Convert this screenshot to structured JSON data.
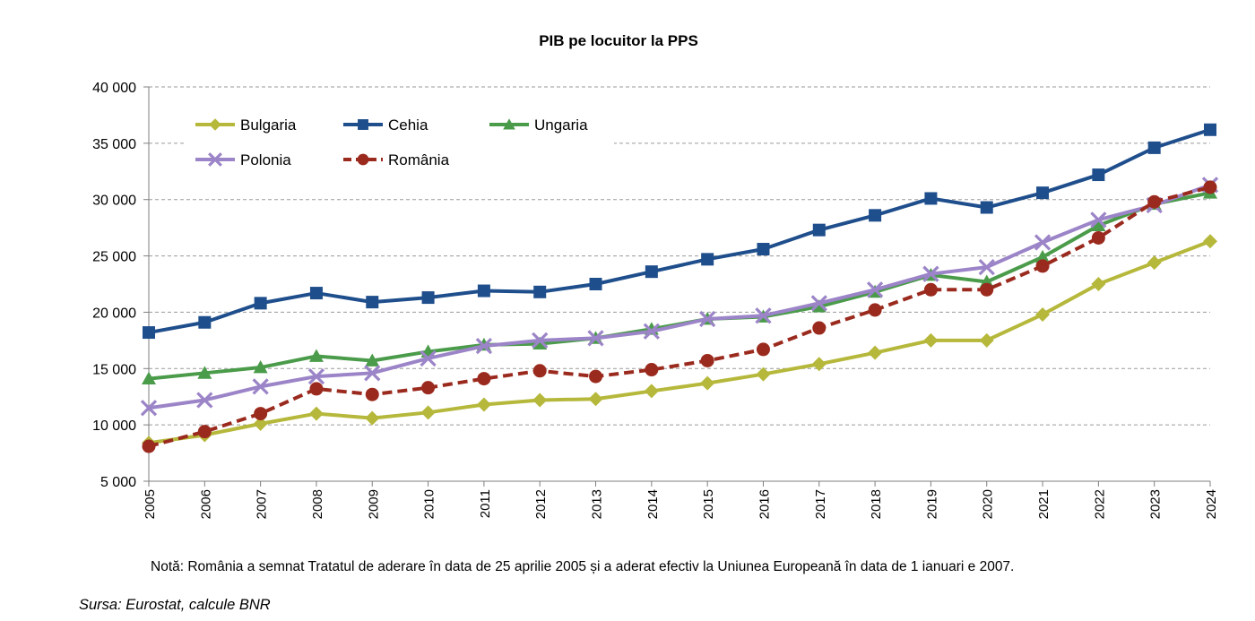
{
  "chart_data": {
    "type": "line",
    "title": "PIB pe locuitor  la PPS",
    "xlabel": "",
    "ylabel": "",
    "ylim": [
      5000,
      40000
    ],
    "yticks": [
      5000,
      10000,
      15000,
      20000,
      25000,
      30000,
      35000,
      40000
    ],
    "ytick_labels": [
      "5 000",
      "10 000",
      "15 000",
      "20 000",
      "25 000",
      "30 000",
      "35 000",
      "40 000"
    ],
    "grid": "horizontal dashed",
    "legend_position": "top-left",
    "x": [
      "2005",
      "2006",
      "2007",
      "2008",
      "2009",
      "2010",
      "2011",
      "2012",
      "2013",
      "2014",
      "2015",
      "2016",
      "2017",
      "2018",
      "2019",
      "2020",
      "2021",
      "2022",
      "2023",
      "2024"
    ],
    "series": [
      {
        "name": "Bulgaria",
        "color": "#b5b83a",
        "marker": "diamond",
        "dash": false,
        "values": [
          8400,
          9100,
          10100,
          11000,
          10600,
          11100,
          11800,
          12200,
          12300,
          13000,
          13700,
          14500,
          15400,
          16400,
          17500,
          17500,
          19800,
          22500,
          24400,
          26300
        ]
      },
      {
        "name": "Cehia",
        "color": "#1f4e8c",
        "marker": "square",
        "dash": false,
        "values": [
          18200,
          19100,
          20800,
          21700,
          20900,
          21300,
          21900,
          21800,
          22500,
          23600,
          24700,
          25600,
          27300,
          28600,
          30100,
          29300,
          30600,
          32200,
          34600,
          36200
        ]
      },
      {
        "name": "Ungaria",
        "color": "#4a9b4a",
        "marker": "triangle",
        "dash": false,
        "values": [
          14100,
          14600,
          15100,
          16100,
          15700,
          16500,
          17100,
          17200,
          17700,
          18500,
          19400,
          19600,
          20500,
          21800,
          23300,
          22700,
          24900,
          27700,
          29600,
          30600
        ]
      },
      {
        "name": "Polonia",
        "color": "#9b84c7",
        "marker": "x",
        "dash": false,
        "values": [
          11500,
          12200,
          13400,
          14300,
          14600,
          15900,
          17000,
          17500,
          17700,
          18300,
          19400,
          19700,
          20800,
          22000,
          23400,
          24000,
          26200,
          28200,
          29500,
          31300
        ]
      },
      {
        "name": "România",
        "color": "#9b2a1e",
        "marker": "circle",
        "dash": true,
        "values": [
          8100,
          9400,
          11000,
          13200,
          12700,
          13300,
          14100,
          14800,
          14300,
          14900,
          15700,
          16700,
          18600,
          20200,
          22000,
          22000,
          24100,
          26600,
          29800,
          31100
        ]
      }
    ]
  },
  "note": "Notă: România a  semnat Tratatul de aderare în data de 25 aprilie 2005 și a aderat efectiv la Uniunea Europeană în data de 1 ianuari e 2007.",
  "source": "Sursa:  Eurostat,  calcule BNR"
}
